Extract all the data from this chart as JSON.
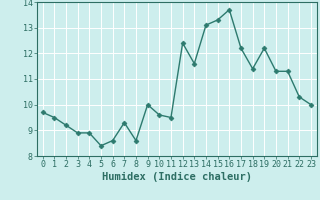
{
  "x": [
    0,
    1,
    2,
    3,
    4,
    5,
    6,
    7,
    8,
    9,
    10,
    11,
    12,
    13,
    14,
    15,
    16,
    17,
    18,
    19,
    20,
    21,
    22,
    23
  ],
  "y": [
    9.7,
    9.5,
    9.2,
    8.9,
    8.9,
    8.4,
    8.6,
    9.3,
    8.6,
    10.0,
    9.6,
    9.5,
    12.4,
    11.6,
    13.1,
    13.3,
    13.7,
    12.2,
    11.4,
    12.2,
    11.3,
    11.3,
    10.3,
    10.0
  ],
  "line_color": "#2d7a6e",
  "marker": "D",
  "marker_size": 2.5,
  "bg_color": "#cdeeed",
  "grid_color": "#ffffff",
  "xlabel": "Humidex (Indice chaleur)",
  "ylim": [
    8,
    14
  ],
  "xlim": [
    -0.5,
    23.5
  ],
  "yticks": [
    8,
    9,
    10,
    11,
    12,
    13,
    14
  ],
  "xticks": [
    0,
    1,
    2,
    3,
    4,
    5,
    6,
    7,
    8,
    9,
    10,
    11,
    12,
    13,
    14,
    15,
    16,
    17,
    18,
    19,
    20,
    21,
    22,
    23
  ],
  "tick_color": "#2d6e63",
  "label_color": "#2d6e63",
  "xlabel_fontsize": 7.5,
  "tick_fontsize": 6.0,
  "linewidth": 1.0
}
